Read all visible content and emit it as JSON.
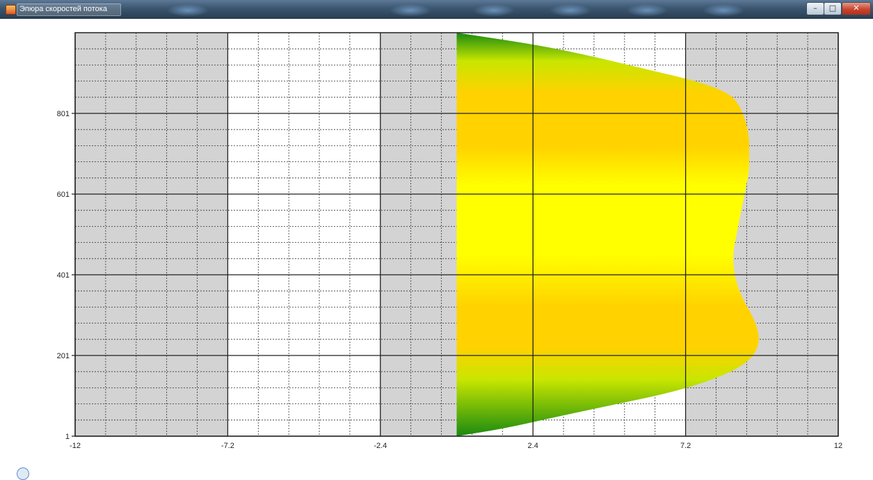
{
  "window": {
    "title": "Эпюра скоростей потока",
    "icon": "app-icon",
    "buttons": {
      "minimize": "–",
      "maximize": "□",
      "close": "✕"
    }
  },
  "chart_data": {
    "type": "area",
    "title": "",
    "xlabel": "",
    "ylabel": "",
    "xlim": [
      -12,
      12
    ],
    "ylim": [
      1,
      1001
    ],
    "x_ticks": [
      -12,
      -7.2,
      -2.4,
      2.4,
      7.2,
      12
    ],
    "x_tick_labels": [
      "-12",
      "-7.2",
      "-2.4",
      "2.4",
      "7.2",
      "12"
    ],
    "y_ticks": [
      1,
      201,
      401,
      601,
      801
    ],
    "y_tick_labels": [
      "1",
      "201",
      "401",
      "601",
      "801"
    ],
    "grid": true,
    "minor_grid": true,
    "band_colors": {
      "shaded": "#d3d3d3",
      "plain": "#ffffff"
    },
    "shaded_bands": [
      [
        -12,
        -7.2
      ],
      [
        -2.4,
        0
      ],
      [
        7.2,
        12
      ]
    ],
    "fill_gradient": [
      "#1a8a10",
      "#c8e600",
      "#ffd200",
      "#ffff00"
    ],
    "series": [
      {
        "baseline_x": 0,
        "points": [
          [
            0,
            1
          ],
          [
            1.5,
            20
          ],
          [
            3.2,
            50
          ],
          [
            5.0,
            80
          ],
          [
            6.8,
            110
          ],
          [
            8.2,
            145
          ],
          [
            9.1,
            180
          ],
          [
            9.5,
            220
          ],
          [
            9.5,
            260
          ],
          [
            9.3,
            300
          ],
          [
            9.0,
            340
          ],
          [
            8.8,
            380
          ],
          [
            8.7,
            420
          ],
          [
            8.7,
            460
          ],
          [
            8.8,
            500
          ],
          [
            8.9,
            540
          ],
          [
            9.0,
            580
          ],
          [
            9.1,
            620
          ],
          [
            9.2,
            660
          ],
          [
            9.2,
            700
          ],
          [
            9.2,
            740
          ],
          [
            9.1,
            780
          ],
          [
            8.9,
            820
          ],
          [
            8.6,
            850
          ],
          [
            7.6,
            880
          ],
          [
            6.0,
            910
          ],
          [
            4.4,
            940
          ],
          [
            2.6,
            970
          ],
          [
            0,
            1001
          ]
        ]
      }
    ]
  }
}
